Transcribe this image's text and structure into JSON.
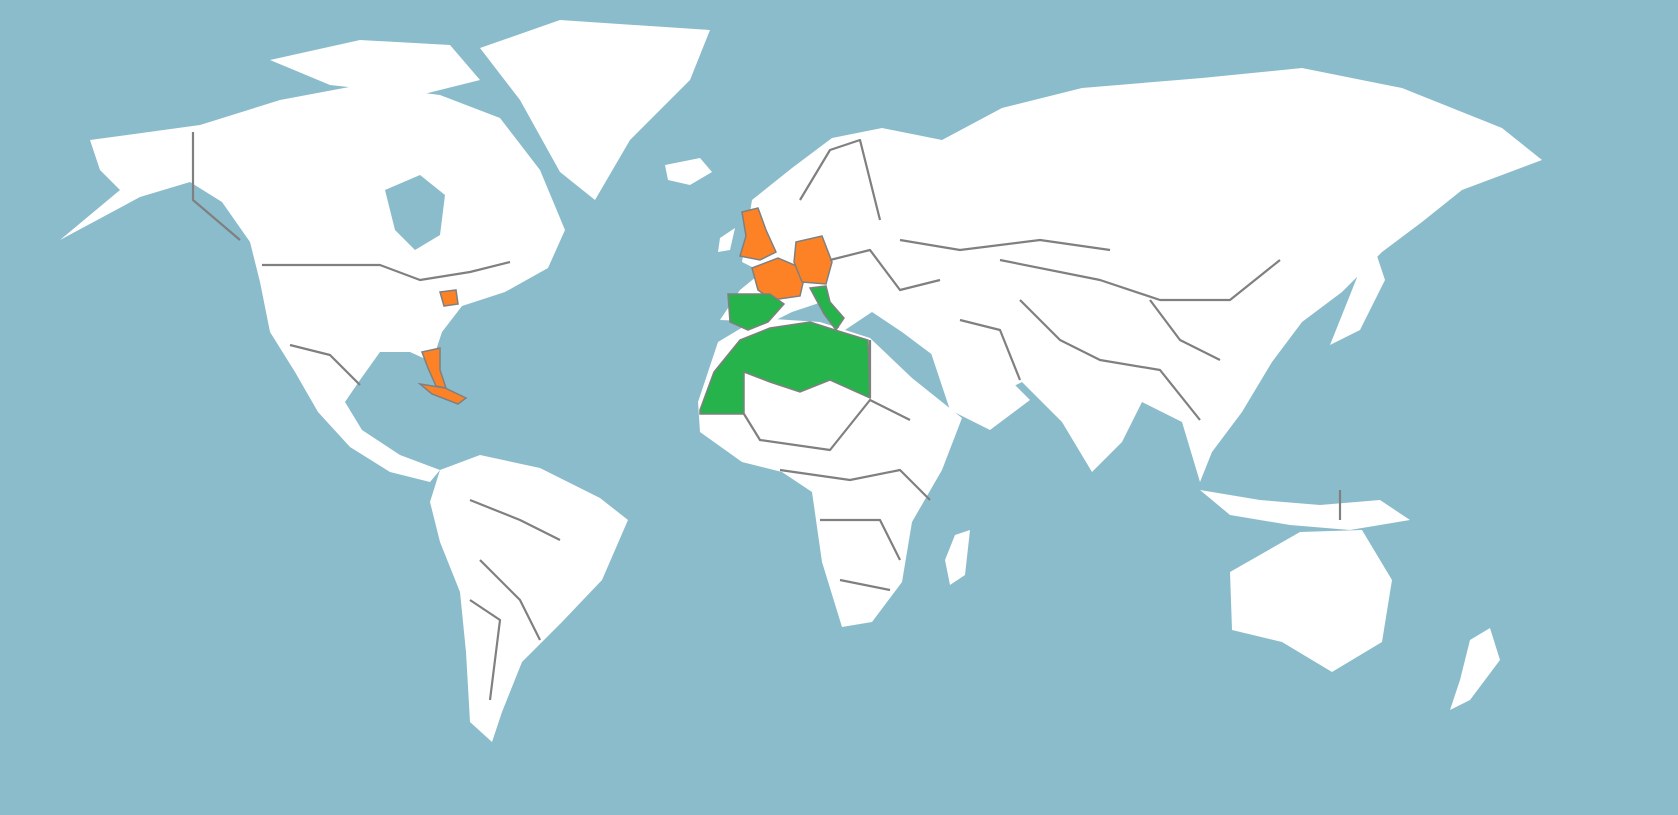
{
  "map": {
    "colors": {
      "ocean": "#8bbccb",
      "land": "#ffffff",
      "border": "#808080",
      "orange": "#fd8226",
      "green": "#26b34b"
    },
    "highlights": {
      "orange": [
        "united-kingdom",
        "france",
        "germany",
        "ohio",
        "florida",
        "cuba"
      ],
      "green": [
        "spain-portugal",
        "italy",
        "morocco-western-sahara",
        "algeria",
        "tunisia",
        "libya"
      ]
    }
  }
}
